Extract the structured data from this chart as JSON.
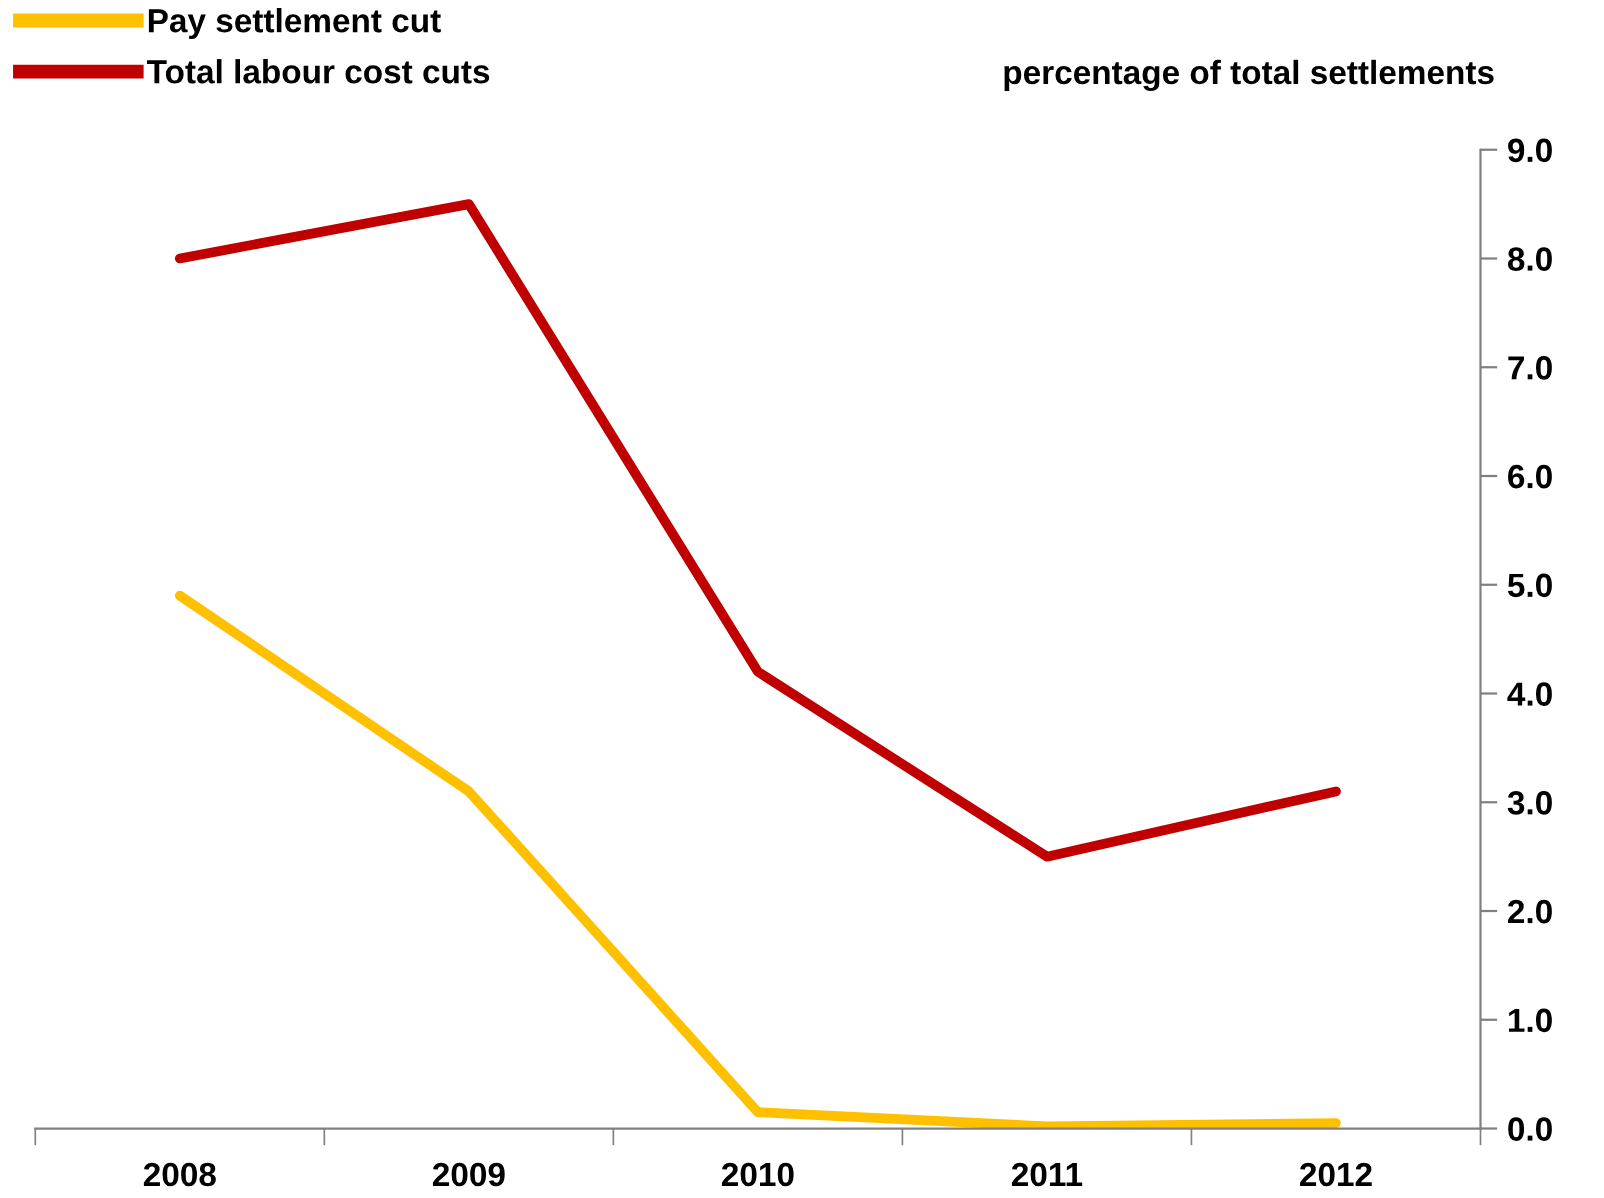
{
  "chart_data": {
    "type": "line",
    "ylabel": "percentage of total settlements",
    "categories": [
      "2008",
      "2009",
      "2010",
      "2011",
      "2012"
    ],
    "series": [
      {
        "name": "Pay settlement cut",
        "color": "#ffc000",
        "values": [
          4.9,
          3.1,
          0.15,
          0.02,
          0.05
        ]
      },
      {
        "name": "Total labour cost cuts",
        "color": "#c00000",
        "values": [
          8.0,
          8.5,
          4.2,
          2.5,
          3.1
        ]
      }
    ],
    "ylim": [
      0,
      9
    ],
    "yticks": [
      {
        "value": 0,
        "label": "0.0"
      },
      {
        "value": 1,
        "label": "1.0"
      },
      {
        "value": 2,
        "label": "2.0"
      },
      {
        "value": 3,
        "label": "3.0"
      },
      {
        "value": 4,
        "label": "4.0"
      },
      {
        "value": 5,
        "label": "5.0"
      },
      {
        "value": 6,
        "label": "6.0"
      },
      {
        "value": 7,
        "label": "7.0"
      },
      {
        "value": 8,
        "label": "8.0"
      },
      {
        "value": 9,
        "label": "9.0"
      }
    ],
    "grid": false,
    "legend": "top left",
    "marker": "none",
    "line_style": "solid"
  }
}
